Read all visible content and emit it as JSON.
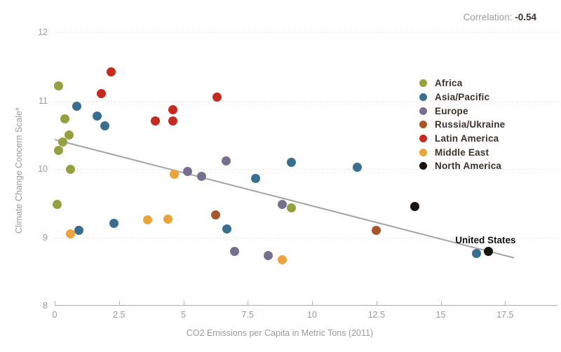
{
  "header": {
    "correlation_label": "Correlation:",
    "correlation_value": "-0.54"
  },
  "chart_data": {
    "type": "scatter",
    "xlabel": "CO2 Emissions per Capita in Metric Tons (2011)",
    "ylabel": "Climate Change Concern Scale*",
    "xlim": [
      0,
      19.5
    ],
    "ylim": [
      8,
      12
    ],
    "x_ticks": [
      0,
      2.5,
      5,
      7.5,
      10,
      12.5,
      15,
      17.5
    ],
    "x_tick_labels": [
      "0",
      "2.5",
      "5",
      "7.5",
      "10",
      "12.5",
      "15",
      "17.5"
    ],
    "y_ticks": [
      12,
      11,
      10,
      9,
      8
    ],
    "grid": "dotted-horizontal-gridlines",
    "legend_position": "inside-right",
    "correlation": -0.54,
    "series": [
      {
        "name": "Africa",
        "color": "#95a13e",
        "points": [
          [
            0.15,
            11.22
          ],
          [
            0.4,
            10.73
          ],
          [
            0.55,
            10.5
          ],
          [
            0.3,
            10.4
          ],
          [
            0.15,
            10.27
          ],
          [
            0.6,
            10.0
          ],
          [
            0.1,
            9.48
          ],
          [
            9.2,
            9.43
          ]
        ]
      },
      {
        "name": "Asia/Pacific",
        "color": "#3a6e90",
        "points": [
          [
            0.85,
            10.92
          ],
          [
            1.65,
            10.77
          ],
          [
            1.95,
            10.63
          ],
          [
            0.95,
            9.1
          ],
          [
            2.3,
            9.21
          ],
          [
            6.7,
            9.12
          ],
          [
            7.8,
            9.86
          ],
          [
            9.2,
            10.1
          ],
          [
            11.75,
            10.03
          ],
          [
            16.4,
            8.76
          ]
        ]
      },
      {
        "name": "Europe",
        "color": "#776f8e",
        "points": [
          [
            5.15,
            9.96
          ],
          [
            5.7,
            9.89
          ],
          [
            6.65,
            10.12
          ],
          [
            7.0,
            8.8
          ],
          [
            8.3,
            8.73
          ],
          [
            8.85,
            9.48
          ]
        ]
      },
      {
        "name": "Russia/Ukraine",
        "color": "#a5562a",
        "points": [
          [
            6.25,
            9.33
          ],
          [
            12.5,
            9.1
          ]
        ]
      },
      {
        "name": "Latin America",
        "color": "#c52a20",
        "points": [
          [
            2.2,
            11.42
          ],
          [
            1.8,
            11.1
          ],
          [
            6.3,
            11.05
          ],
          [
            4.6,
            10.87
          ],
          [
            3.9,
            10.7
          ],
          [
            4.6,
            10.7
          ]
        ]
      },
      {
        "name": "Middle East",
        "color": "#eba33b",
        "points": [
          [
            0.6,
            9.05
          ],
          [
            3.6,
            9.26
          ],
          [
            4.4,
            9.27
          ],
          [
            4.65,
            9.92
          ],
          [
            8.85,
            8.67
          ]
        ]
      },
      {
        "name": "North America",
        "color": "#161311",
        "points": [
          [
            14.0,
            9.45
          ],
          [
            16.85,
            8.79
          ]
        ]
      }
    ],
    "trend_line": {
      "x1": 0,
      "y1": 10.43,
      "x2": 17.85,
      "y2": 8.7
    },
    "annotation": {
      "label": "United States",
      "x": 16.85,
      "y": 8.79
    }
  }
}
